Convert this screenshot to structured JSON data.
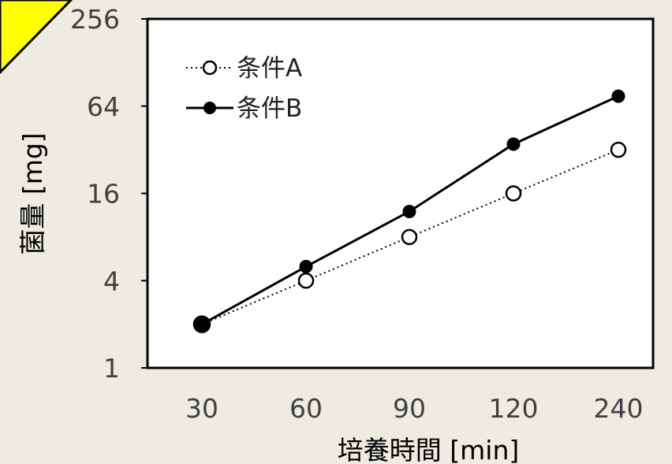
{
  "chart_data": {
    "type": "line",
    "xlabel": "培養時間 [min]",
    "ylabel": "菌量 [mg]",
    "categories": [
      "30",
      "60",
      "90",
      "120",
      "240"
    ],
    "y_scale": "log2",
    "ylim": [
      1,
      256
    ],
    "y_ticks": [
      "1",
      "4",
      "16",
      "64",
      "256"
    ],
    "grid": false,
    "legend_position": "top-left",
    "series": [
      {
        "name": "条件A",
        "values": [
          2,
          4,
          8,
          16,
          32
        ],
        "style": "dotted",
        "marker": "open-circle",
        "color": "#000000"
      },
      {
        "name": "条件B",
        "values": [
          2,
          5,
          12,
          35,
          75
        ],
        "style": "solid",
        "marker": "filled-circle",
        "color": "#000000"
      }
    ]
  },
  "decoration": {
    "corner_tab_color": "#ffff00"
  }
}
